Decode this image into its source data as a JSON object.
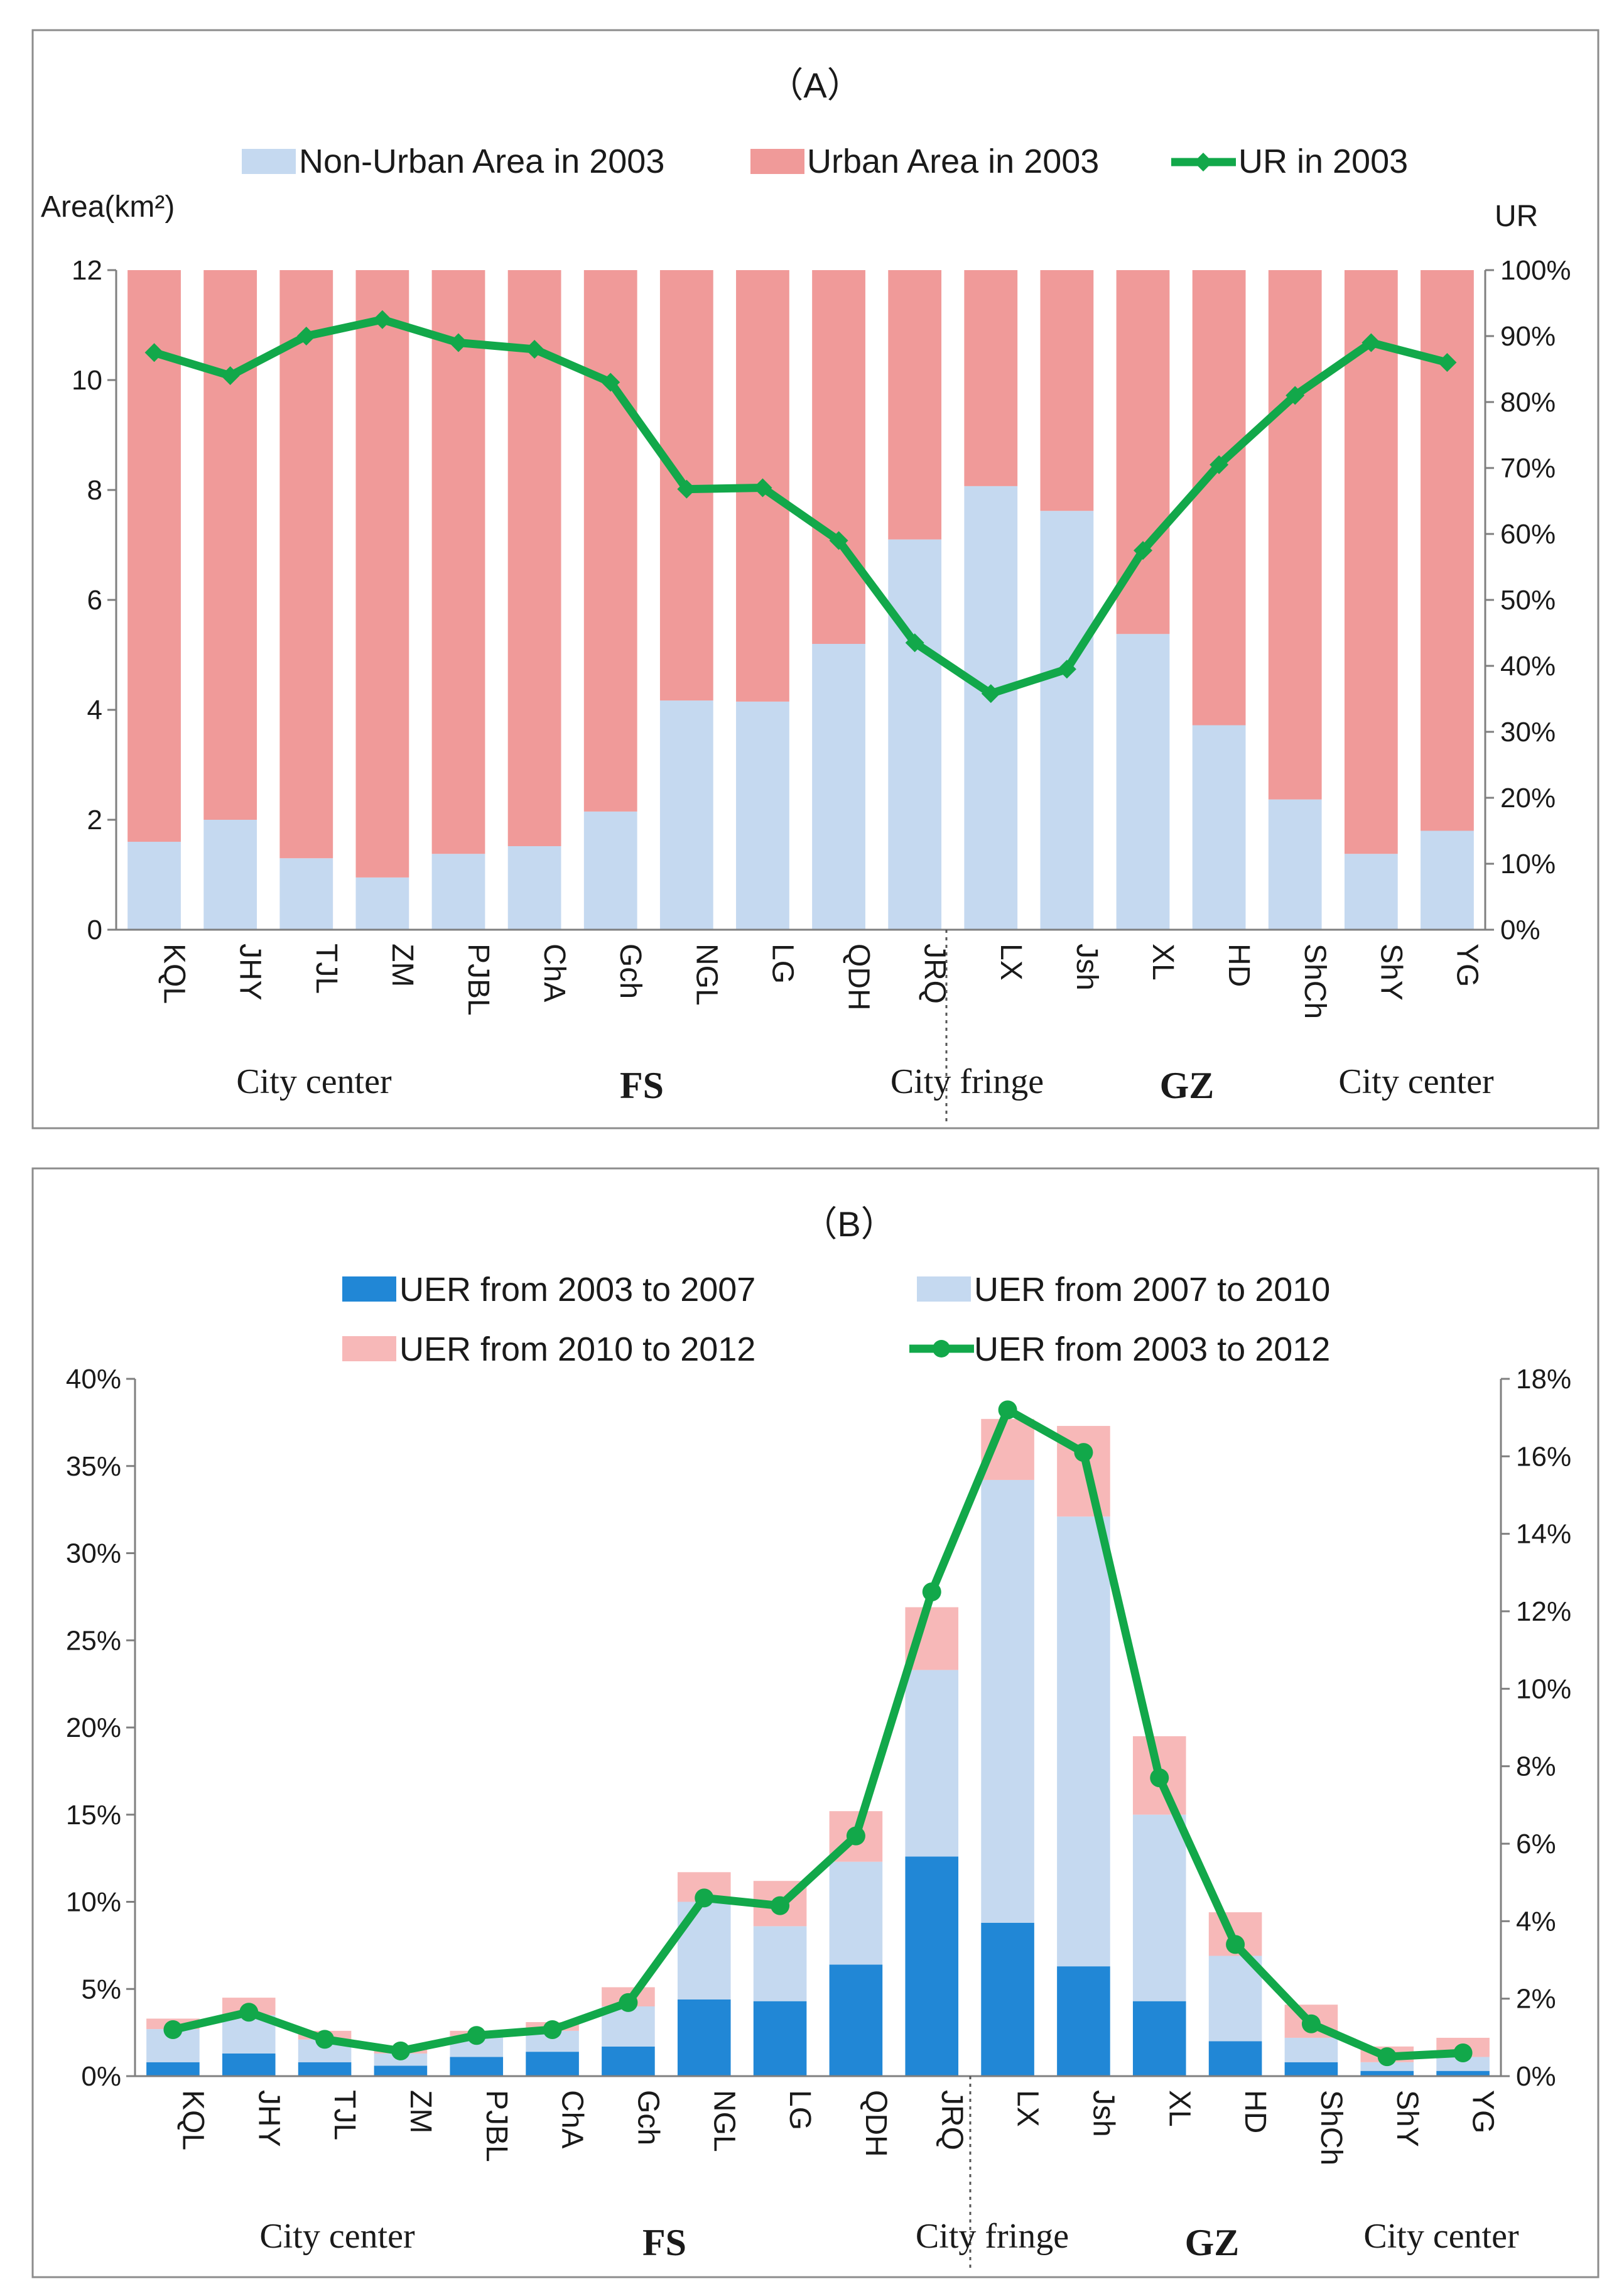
{
  "chart_data": [
    {
      "type": "bar",
      "title": "（A）",
      "ylabel": "Area(km²)",
      "y2label": "UR",
      "stacked": true,
      "categories": [
        "KQL",
        "JHY",
        "TJL",
        "ZM",
        "PJBL",
        "ChA",
        "Gch",
        "NGL",
        "LG",
        "QDH",
        "JRQ",
        "LX",
        "Jsh",
        "XL",
        "HD",
        "ShCh",
        "ShY",
        "YG"
      ],
      "ylim": [
        0,
        12
      ],
      "yticks": [
        "0",
        "2",
        "4",
        "6",
        "8",
        "10",
        "12"
      ],
      "y2lim": [
        0,
        100
      ],
      "y2ticks": [
        "0%",
        "10%",
        "20%",
        "30%",
        "40%",
        "50%",
        "60%",
        "70%",
        "80%",
        "90%",
        "100%"
      ],
      "grid": false,
      "legend_position": "top",
      "series": [
        {
          "name": "Non-Urban Area in 2003",
          "kind": "bar",
          "color": "#c5d9f0",
          "values": [
            1.6,
            2.0,
            1.3,
            0.95,
            1.38,
            1.52,
            2.15,
            4.17,
            4.15,
            5.2,
            7.1,
            8.07,
            7.62,
            5.38,
            3.72,
            2.37,
            1.38,
            1.8
          ]
        },
        {
          "name": "Urban Area in 2003",
          "kind": "bar",
          "color": "#f09a99",
          "values": [
            10.4,
            10.0,
            10.7,
            11.05,
            10.62,
            10.48,
            9.85,
            7.83,
            7.85,
            6.8,
            4.9,
            3.93,
            4.38,
            6.62,
            8.28,
            9.63,
            10.62,
            10.2
          ]
        },
        {
          "name": "UR in 2003",
          "kind": "line",
          "axis": "right",
          "color": "#12a84a",
          "marker": "diamond",
          "values": [
            87.5,
            84.0,
            90.0,
            92.5,
            89.0,
            88.0,
            83.0,
            66.8,
            67.0,
            59.0,
            43.5,
            35.8,
            39.5,
            57.5,
            70.5,
            81.0,
            89.0,
            86.0
          ]
        }
      ],
      "group_labels": [
        "City center",
        "FS",
        "City fringe",
        "GZ",
        "City center"
      ]
    },
    {
      "type": "bar",
      "title": "（B）",
      "stacked": true,
      "categories": [
        "KQL",
        "JHY",
        "TJL",
        "ZM",
        "PJBL",
        "ChA",
        "Gch",
        "NGL",
        "LG",
        "QDH",
        "JRQ",
        "LX",
        "Jsh",
        "XL",
        "HD",
        "ShCh",
        "ShY",
        "YG"
      ],
      "ylim": [
        0,
        40
      ],
      "yticks": [
        "0%",
        "5%",
        "10%",
        "15%",
        "20%",
        "25%",
        "30%",
        "35%",
        "40%"
      ],
      "y2lim": [
        0,
        18
      ],
      "y2ticks": [
        "0%",
        "2%",
        "4%",
        "6%",
        "8%",
        "10%",
        "12%",
        "14%",
        "16%",
        "18%"
      ],
      "grid": false,
      "legend_position": "top",
      "series": [
        {
          "name": "UER from 2003 to 2007",
          "kind": "bar",
          "color": "#2187d6",
          "values": [
            0.8,
            1.3,
            0.8,
            0.6,
            1.1,
            1.4,
            1.7,
            4.4,
            4.3,
            6.4,
            12.6,
            8.8,
            6.3,
            4.3,
            2.0,
            0.8,
            0.3,
            0.3
          ]
        },
        {
          "name": "UER from 2007 to 2010",
          "kind": "bar",
          "color": "#c5d9f0",
          "values": [
            1.9,
            2.2,
            1.3,
            0.7,
            1.2,
            1.2,
            2.3,
            5.6,
            4.3,
            5.9,
            10.7,
            25.4,
            25.8,
            10.7,
            4.9,
            1.4,
            0.5,
            0.8
          ]
        },
        {
          "name": "UER from 2010 to 2012",
          "kind": "bar",
          "color": "#f7b8b8",
          "values": [
            0.6,
            1.0,
            0.5,
            0.4,
            0.3,
            0.5,
            1.1,
            1.7,
            2.6,
            2.9,
            3.6,
            3.5,
            5.2,
            4.5,
            2.5,
            1.9,
            0.9,
            1.1
          ]
        },
        {
          "name": "UER from 2003 to 2012",
          "kind": "line",
          "axis": "right",
          "color": "#12a84a",
          "marker": "circle",
          "values": [
            1.2,
            1.65,
            0.95,
            0.65,
            1.05,
            1.2,
            1.9,
            4.6,
            4.4,
            6.2,
            12.5,
            17.2,
            16.1,
            7.7,
            3.4,
            1.35,
            0.5,
            0.6
          ]
        }
      ],
      "group_labels": [
        "City center",
        "FS",
        "City fringe",
        "GZ",
        "City center"
      ]
    }
  ]
}
